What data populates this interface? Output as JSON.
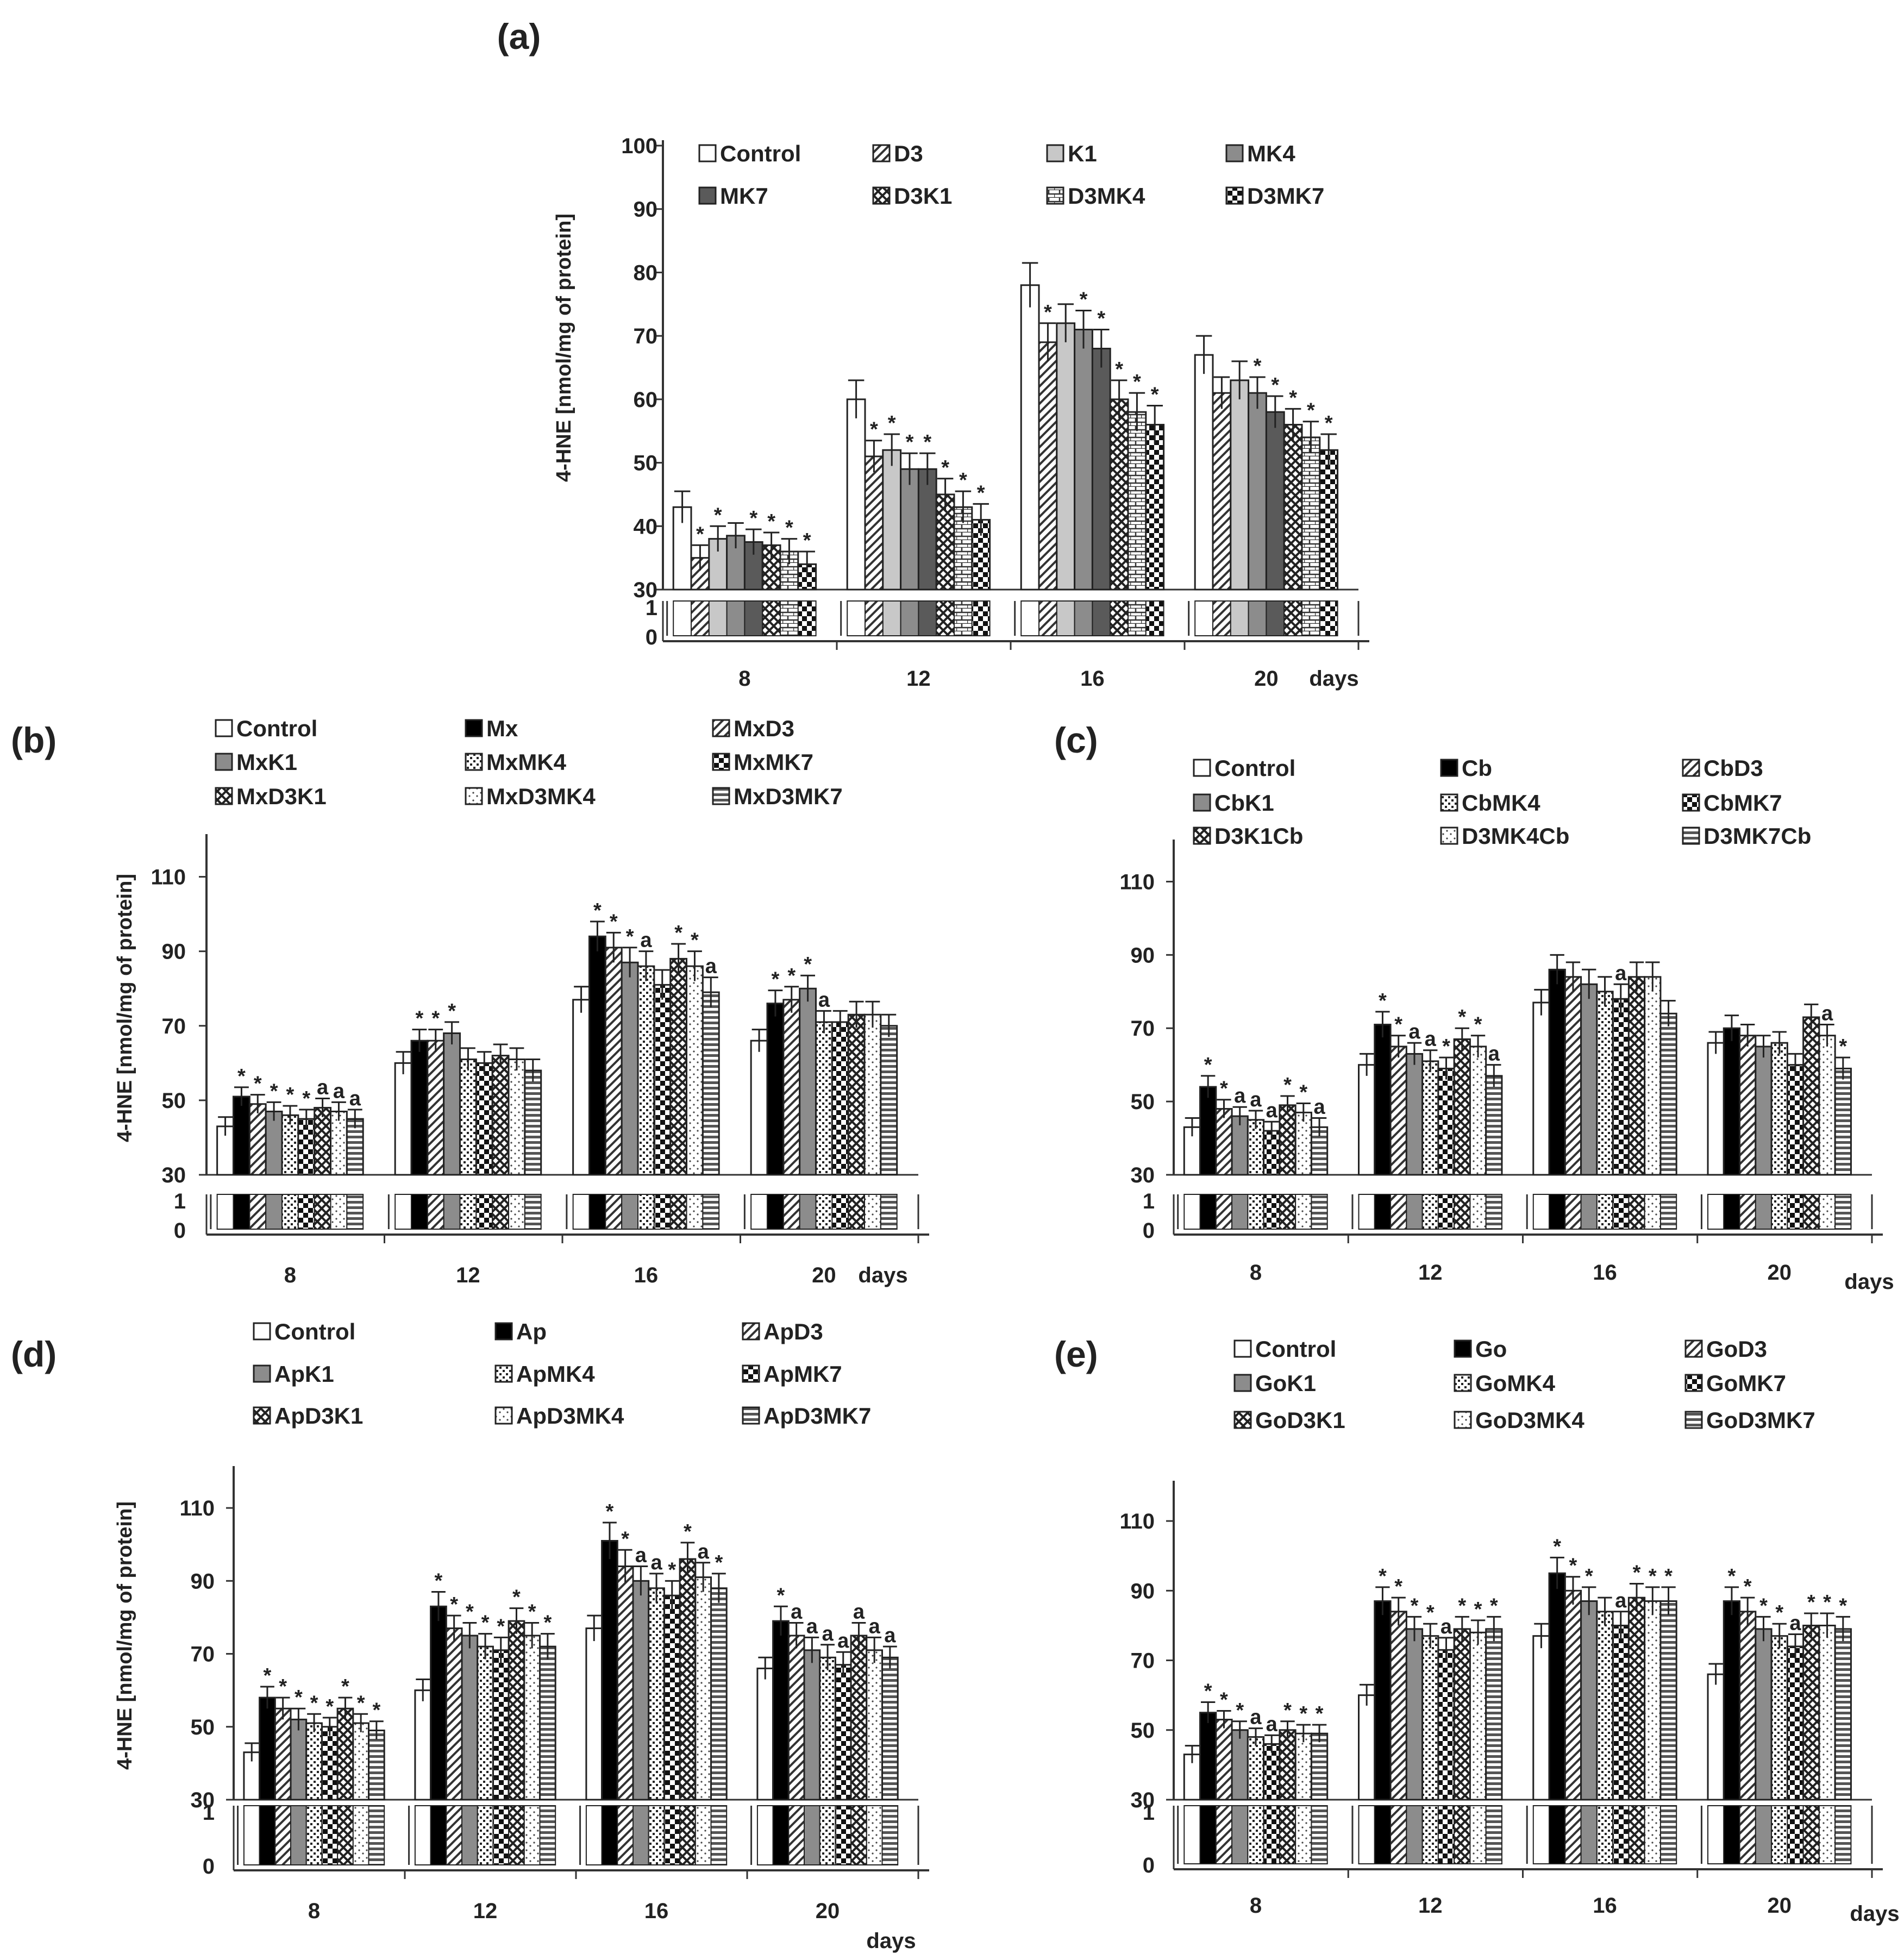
{
  "chart_data": [
    {
      "panel": "(a)",
      "type": "bar",
      "ylabel": "4-HNE  [nmol/mg of protein]",
      "yticks": [
        "100",
        "90",
        "80",
        "70",
        "60",
        "50",
        "40",
        "30"
      ],
      "ylim": [
        30,
        100
      ],
      "xlabel": "days",
      "categories": [
        "8",
        "12",
        "16",
        "20"
      ],
      "series": [
        {
          "name": "Control",
          "pattern": "white",
          "values": [
            43,
            60,
            78,
            67
          ],
          "errors": [
            2.5,
            3,
            3.5,
            3
          ],
          "labels": [
            "",
            "",
            "",
            ""
          ]
        },
        {
          "name": "D3",
          "pattern": "diag",
          "values": [
            35,
            51,
            69,
            61
          ],
          "errors": [
            2,
            2.5,
            3,
            2.5
          ],
          "labels": [
            "*",
            "*",
            "*",
            ""
          ]
        },
        {
          "name": "K1",
          "pattern": "lightgray",
          "values": [
            38,
            52,
            72,
            63
          ],
          "errors": [
            2,
            2.5,
            3,
            3
          ],
          "labels": [
            "*",
            "*",
            "",
            ""
          ]
        },
        {
          "name": "MK4",
          "pattern": "gray",
          "values": [
            38.5,
            49,
            71,
            61
          ],
          "errors": [
            2,
            2.5,
            3,
            2.5
          ],
          "labels": [
            "",
            "*",
            "*",
            "*"
          ]
        },
        {
          "name": "MK7",
          "pattern": "darkgray",
          "values": [
            37.5,
            49,
            68,
            58
          ],
          "errors": [
            2,
            2.5,
            3,
            2.5
          ],
          "labels": [
            "*",
            "*",
            "*",
            "*"
          ]
        },
        {
          "name": "D3K1",
          "pattern": "cross",
          "values": [
            37,
            45,
            60,
            56
          ],
          "errors": [
            2,
            2.5,
            3,
            2.5
          ],
          "labels": [
            "*",
            "*",
            "*",
            "*"
          ]
        },
        {
          "name": "D3MK4",
          "pattern": "brick",
          "values": [
            36,
            43,
            58,
            54
          ],
          "errors": [
            2,
            2.5,
            3,
            2.5
          ],
          "labels": [
            "*",
            "*",
            "*",
            "*"
          ]
        },
        {
          "name": "D3MK7",
          "pattern": "checker",
          "values": [
            34,
            41,
            56,
            52
          ],
          "errors": [
            2,
            2.5,
            3,
            2.5
          ],
          "labels": [
            "*",
            "*",
            "*",
            "*"
          ]
        }
      ]
    },
    {
      "panel": "(b)",
      "type": "bar",
      "ylabel": "4-HNE  [nmol/mg of protein]",
      "yticks": [
        "110",
        "90",
        "70",
        "50",
        "30"
      ],
      "ylim": [
        30,
        120
      ],
      "xlabel": "days",
      "categories": [
        "8",
        "12",
        "16",
        "20"
      ],
      "series": [
        {
          "name": "Control",
          "pattern": "white",
          "values": [
            43,
            60,
            77,
            66
          ],
          "errors": [
            2.5,
            3,
            3.5,
            3
          ],
          "labels": [
            "",
            "",
            "",
            ""
          ]
        },
        {
          "name": "Mx",
          "pattern": "black",
          "values": [
            51,
            66,
            94,
            76
          ],
          "errors": [
            2.5,
            3,
            4,
            3.5
          ],
          "labels": [
            "*",
            "*",
            "*",
            "*"
          ]
        },
        {
          "name": "MxD3",
          "pattern": "diag",
          "values": [
            49,
            66,
            91,
            77
          ],
          "errors": [
            2.5,
            3,
            4,
            3.5
          ],
          "labels": [
            "*",
            "*",
            "*",
            "*"
          ]
        },
        {
          "name": "MxK1",
          "pattern": "gray",
          "values": [
            47,
            68,
            87,
            80
          ],
          "errors": [
            2.5,
            3,
            4,
            3.5
          ],
          "labels": [
            "*",
            "*",
            "*",
            "*"
          ]
        },
        {
          "name": "MxMK4",
          "pattern": "dots",
          "values": [
            46,
            61,
            86,
            71
          ],
          "errors": [
            2.5,
            3,
            4,
            3
          ],
          "labels": [
            "*",
            "",
            "a",
            "a"
          ]
        },
        {
          "name": "MxMK7",
          "pattern": "checker",
          "values": [
            45,
            60,
            81,
            71
          ],
          "errors": [
            2.5,
            3,
            4,
            3
          ],
          "labels": [
            "*",
            "",
            "",
            ""
          ]
        },
        {
          "name": "MxD3K1",
          "pattern": "cross",
          "values": [
            48,
            62,
            88,
            73
          ],
          "errors": [
            2.5,
            3,
            4,
            3.5
          ],
          "labels": [
            "a",
            "",
            "*",
            ""
          ]
        },
        {
          "name": "MxD3MK4",
          "pattern": "speckle",
          "values": [
            47,
            61,
            86,
            73
          ],
          "errors": [
            2.5,
            3,
            4,
            3.5
          ],
          "labels": [
            "a",
            "",
            "*",
            ""
          ]
        },
        {
          "name": "MxD3MK7",
          "pattern": "hstripe",
          "values": [
            45,
            58,
            79,
            70
          ],
          "errors": [
            2.5,
            3,
            4,
            3
          ],
          "labels": [
            "a",
            "",
            "a",
            ""
          ]
        }
      ]
    },
    {
      "panel": "(c)",
      "type": "bar",
      "ylabel": "",
      "yticks": [
        "110",
        "90",
        "70",
        "50",
        "30"
      ],
      "ylim": [
        30,
        120
      ],
      "xlabel": "days",
      "categories": [
        "8",
        "12",
        "16",
        "20"
      ],
      "series": [
        {
          "name": "Control",
          "pattern": "white",
          "values": [
            43,
            60,
            77,
            66
          ],
          "errors": [
            2.5,
            3,
            3.5,
            3
          ],
          "labels": [
            "",
            "",
            "",
            ""
          ]
        },
        {
          "name": "Cb",
          "pattern": "black",
          "values": [
            54,
            71,
            86,
            70
          ],
          "errors": [
            3,
            3.5,
            4,
            3.5
          ],
          "labels": [
            "*",
            "*",
            "",
            ""
          ]
        },
        {
          "name": "CbD3",
          "pattern": "diag",
          "values": [
            48,
            65,
            84,
            68
          ],
          "errors": [
            2.5,
            3,
            4,
            3
          ],
          "labels": [
            "*",
            "*",
            "",
            ""
          ]
        },
        {
          "name": "CbK1",
          "pattern": "gray",
          "values": [
            46,
            63,
            82,
            65
          ],
          "errors": [
            2.5,
            3,
            4,
            3
          ],
          "labels": [
            "a",
            "a",
            "",
            ""
          ]
        },
        {
          "name": "CbMK4",
          "pattern": "dots",
          "values": [
            45,
            61,
            80,
            66
          ],
          "errors": [
            2.5,
            3,
            4,
            3
          ],
          "labels": [
            "a",
            "a",
            "",
            ""
          ]
        },
        {
          "name": "CbMK7",
          "pattern": "checker",
          "values": [
            42,
            59,
            78,
            60
          ],
          "errors": [
            2.5,
            3,
            4,
            3
          ],
          "labels": [
            "a",
            "*",
            "a",
            ""
          ]
        },
        {
          "name": "D3K1Cb",
          "pattern": "cross",
          "values": [
            49,
            67,
            84,
            73
          ],
          "errors": [
            2.5,
            3,
            4,
            3.5
          ],
          "labels": [
            "*",
            "*",
            "",
            ""
          ]
        },
        {
          "name": "D3MK4Cb",
          "pattern": "speckle",
          "values": [
            47,
            65,
            84,
            68
          ],
          "errors": [
            2.5,
            3,
            4,
            3
          ],
          "labels": [
            "*",
            "*",
            "",
            "a"
          ]
        },
        {
          "name": "D3MK7Cb",
          "pattern": "hstripe",
          "values": [
            43,
            57,
            74,
            59
          ],
          "errors": [
            2.5,
            3,
            3.5,
            3
          ],
          "labels": [
            "a",
            "a",
            "",
            "*"
          ]
        }
      ]
    },
    {
      "panel": "(d)",
      "type": "bar",
      "ylabel": "4-HNE  [nmol/mg of protein]",
      "yticks": [
        "110",
        "90",
        "70",
        "50",
        "30"
      ],
      "ylim": [
        30,
        120
      ],
      "xlabel": "days",
      "categories": [
        "8",
        "12",
        "16",
        "20"
      ],
      "series": [
        {
          "name": "Control",
          "pattern": "white",
          "values": [
            43,
            60,
            77,
            66
          ],
          "errors": [
            2.5,
            3,
            3.5,
            3
          ],
          "labels": [
            "",
            "",
            "",
            ""
          ]
        },
        {
          "name": "Ap",
          "pattern": "black",
          "values": [
            58,
            83,
            101,
            79
          ],
          "errors": [
            3,
            4,
            5,
            4
          ],
          "labels": [
            "*",
            "*",
            "*",
            "*"
          ]
        },
        {
          "name": "ApD3",
          "pattern": "diag",
          "values": [
            55,
            77,
            94,
            75
          ],
          "errors": [
            3,
            3.5,
            4.5,
            3.5
          ],
          "labels": [
            "*",
            "*",
            "*",
            "a"
          ]
        },
        {
          "name": "ApK1",
          "pattern": "gray",
          "values": [
            52,
            75,
            90,
            71
          ],
          "errors": [
            3,
            3.5,
            4,
            3.5
          ],
          "labels": [
            "*",
            "*",
            "a",
            "a"
          ]
        },
        {
          "name": "ApMK4",
          "pattern": "dots",
          "values": [
            51,
            72,
            88,
            69
          ],
          "errors": [
            2.5,
            3.5,
            4,
            3.5
          ],
          "labels": [
            "*",
            "*",
            "a",
            "a"
          ]
        },
        {
          "name": "ApMK7",
          "pattern": "checker",
          "values": [
            50,
            71,
            86,
            67
          ],
          "errors": [
            2.5,
            3.5,
            4,
            3.5
          ],
          "labels": [
            "*",
            "*",
            "*",
            "a"
          ]
        },
        {
          "name": "ApD3K1",
          "pattern": "cross",
          "values": [
            55,
            79,
            96,
            75
          ],
          "errors": [
            3,
            3.5,
            4.5,
            3.5
          ],
          "labels": [
            "*",
            "*",
            "*",
            "a"
          ]
        },
        {
          "name": "ApD3MK4",
          "pattern": "speckle",
          "values": [
            51,
            75,
            91,
            71
          ],
          "errors": [
            2.5,
            3.5,
            4,
            3.5
          ],
          "labels": [
            "*",
            "*",
            "a",
            "a"
          ]
        },
        {
          "name": "ApD3MK7",
          "pattern": "hstripe",
          "values": [
            49,
            72,
            88,
            69
          ],
          "errors": [
            2.5,
            3.5,
            4,
            3
          ],
          "labels": [
            "*",
            "*",
            "*",
            "a"
          ]
        }
      ]
    },
    {
      "panel": "(e)",
      "type": "bar",
      "ylabel": "",
      "yticks": [
        "110",
        "90",
        "70",
        "50",
        "30"
      ],
      "ylim": [
        30,
        120
      ],
      "xlabel": "days",
      "categories": [
        "8",
        "12",
        "16",
        "20"
      ],
      "series": [
        {
          "name": "Control",
          "pattern": "white",
          "values": [
            43,
            60,
            77,
            66
          ],
          "errors": [
            2.5,
            3,
            3.5,
            3
          ],
          "labels": [
            "",
            "",
            "",
            ""
          ]
        },
        {
          "name": "Go",
          "pattern": "black",
          "values": [
            55,
            87,
            95,
            87
          ],
          "errors": [
            3,
            4,
            4.5,
            4
          ],
          "labels": [
            "*",
            "*",
            "*",
            "*"
          ]
        },
        {
          "name": "GoD3",
          "pattern": "diag",
          "values": [
            53,
            84,
            90,
            84
          ],
          "errors": [
            2.5,
            4,
            4,
            4
          ],
          "labels": [
            "*",
            "*",
            "*",
            "*"
          ]
        },
        {
          "name": "GoK1",
          "pattern": "gray",
          "values": [
            50,
            79,
            87,
            79
          ],
          "errors": [
            2.5,
            3.5,
            4,
            3.5
          ],
          "labels": [
            "*",
            "*",
            "*",
            "*"
          ]
        },
        {
          "name": "GoMK4",
          "pattern": "dots",
          "values": [
            48,
            77,
            84,
            77
          ],
          "errors": [
            2.5,
            3.5,
            4,
            3.5
          ],
          "labels": [
            "a",
            "*",
            "",
            "*"
          ]
        },
        {
          "name": "GoMK7",
          "pattern": "checker",
          "values": [
            46,
            73,
            80,
            74
          ],
          "errors": [
            2.5,
            3.5,
            4,
            3.5
          ],
          "labels": [
            "a",
            "a",
            "a",
            "a"
          ]
        },
        {
          "name": "GoD3K1",
          "pattern": "cross",
          "values": [
            50,
            79,
            88,
            80
          ],
          "errors": [
            2.5,
            3.5,
            4,
            3.5
          ],
          "labels": [
            "*",
            "*",
            "*",
            "*"
          ]
        },
        {
          "name": "GoD3MK4",
          "pattern": "speckle",
          "values": [
            49,
            78,
            87,
            80
          ],
          "errors": [
            2.5,
            3.5,
            4,
            3.5
          ],
          "labels": [
            "*",
            "*",
            "*",
            "*"
          ]
        },
        {
          "name": "GoD3MK7",
          "pattern": "hstripe",
          "values": [
            49,
            79,
            87,
            79
          ],
          "errors": [
            2.5,
            3.5,
            4,
            3.5
          ],
          "labels": [
            "*",
            "*",
            "*",
            "*"
          ]
        }
      ]
    }
  ]
}
